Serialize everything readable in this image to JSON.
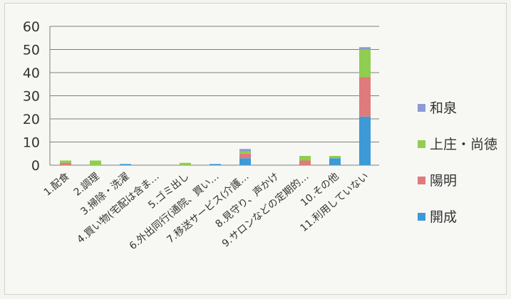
{
  "chart_data": {
    "type": "bar",
    "stacked": true,
    "categories": [
      "1.配食",
      "2.調理",
      "3.掃除・洗濯",
      "4.買い物(宅配は含ま…",
      "5.ゴミ出し",
      "6.外出同行(通院、買い…",
      "7.移送サービス(介護…",
      "8.見守り、声かけ",
      "9.サロンなどの定期的…",
      "10.その他",
      "11.利用していない"
    ],
    "series": [
      {
        "name": "開成",
        "color": "#3d9ad6",
        "values": [
          0,
          0,
          0.5,
          0,
          0,
          0.5,
          3,
          0,
          0,
          3,
          21
        ]
      },
      {
        "name": "陽明",
        "color": "#e07a7c",
        "values": [
          1,
          0,
          0,
          0,
          0,
          0,
          2,
          0,
          2,
          0,
          17
        ]
      },
      {
        "name": "上庄・尚徳",
        "color": "#8fce4e",
        "values": [
          1,
          2,
          0,
          0,
          1,
          0,
          1,
          0,
          2,
          1,
          12
        ]
      },
      {
        "name": "和泉",
        "color": "#8c9ad6",
        "values": [
          0,
          0,
          0,
          0,
          0,
          0,
          1,
          0,
          0,
          0,
          1
        ]
      }
    ],
    "yticks": [
      0,
      10,
      20,
      30,
      40,
      50,
      60
    ],
    "ylim": [
      0,
      60
    ],
    "grid": true,
    "legend": "right"
  }
}
